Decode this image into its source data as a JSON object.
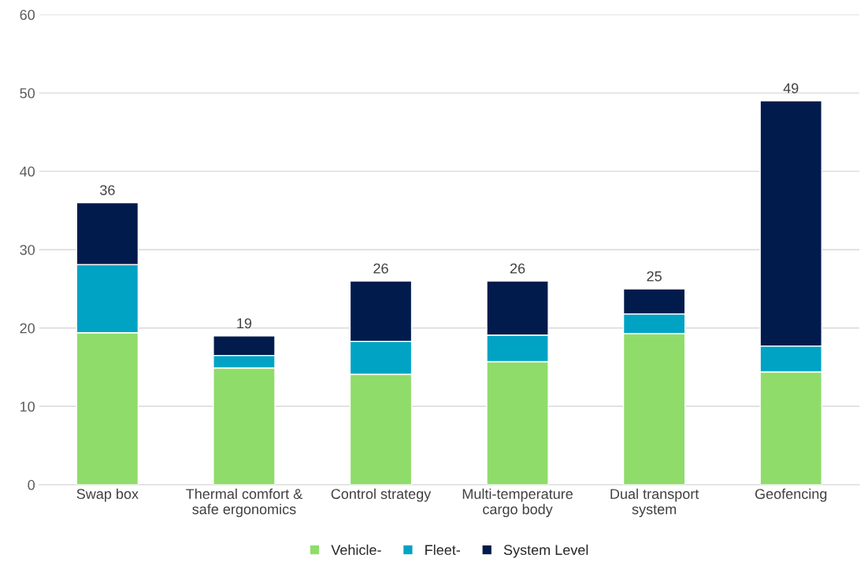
{
  "chart_data": {
    "type": "bar",
    "stacked": true,
    "categories": [
      "Swap box",
      "Thermal comfort &\nsafe ergonomics",
      "Control strategy",
      "Multi-temperature\ncargo body",
      "Dual transport\nsystem",
      "Geofencing"
    ],
    "series": [
      {
        "name": "Vehicle-",
        "color": "#8fdc6a",
        "values": [
          19.4,
          14.9,
          14.1,
          15.7,
          19.3,
          14.4
        ]
      },
      {
        "name": "Fleet-",
        "color": "#00a3c4",
        "values": [
          8.7,
          1.6,
          4.2,
          3.4,
          2.5,
          3.3
        ]
      },
      {
        "name": "System Level",
        "color": "#001b4c",
        "values": [
          7.9,
          2.5,
          7.7,
          6.9,
          3.2,
          31.3
        ]
      }
    ],
    "totals": [
      "36",
      "19",
      "26",
      "26",
      "25",
      "49"
    ],
    "ylim": [
      0,
      60
    ],
    "yticks": [
      0,
      10,
      20,
      30,
      40,
      50,
      60
    ],
    "grid": "y",
    "legend": "bottom"
  }
}
